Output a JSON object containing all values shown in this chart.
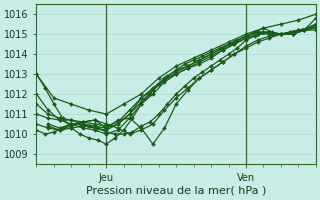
{
  "title": "",
  "xlabel": "Pression niveau de la mer( hPa )",
  "ylabel": "",
  "background_color": "#c8ece6",
  "plot_background": "#c8ece6",
  "grid_color_h": "#b0d8d0",
  "grid_color_v": "#b0d8d0",
  "line_color": "#1a5c1a",
  "ylim": [
    1008.5,
    1016.5
  ],
  "xlim": [
    0,
    96
  ],
  "xticks": [
    24,
    72
  ],
  "xtick_labels": [
    "Jeu",
    "Ven"
  ],
  "yticks": [
    1009,
    1010,
    1011,
    1012,
    1013,
    1014,
    1015,
    1016
  ],
  "series": [
    {
      "x": [
        0,
        3,
        6,
        9,
        12,
        15,
        18,
        21,
        24,
        27,
        30,
        33,
        36,
        39,
        42,
        45,
        48,
        51,
        54,
        57,
        60,
        63,
        66,
        69,
        72,
        75,
        78,
        81,
        84,
        87,
        90,
        93,
        96
      ],
      "y": [
        1013.0,
        1012.3,
        1011.5,
        1010.8,
        1010.3,
        1010.0,
        1009.8,
        1009.7,
        1009.5,
        1009.8,
        1010.2,
        1010.8,
        1011.5,
        1012.0,
        1012.5,
        1012.9,
        1013.2,
        1013.5,
        1013.7,
        1013.9,
        1014.1,
        1014.3,
        1014.5,
        1014.7,
        1014.9,
        1015.1,
        1015.3,
        1015.1,
        1015.0,
        1015.1,
        1015.2,
        1015.3,
        1015.5
      ]
    },
    {
      "x": [
        0,
        4,
        8,
        12,
        16,
        20,
        24,
        28,
        32,
        36,
        40,
        44,
        48,
        52,
        56,
        60,
        64,
        68,
        72,
        76,
        80,
        84,
        88,
        92,
        96
      ],
      "y": [
        1012.0,
        1011.2,
        1010.7,
        1010.5,
        1010.3,
        1010.2,
        1010.0,
        1010.2,
        1010.8,
        1011.5,
        1012.0,
        1012.6,
        1013.0,
        1013.3,
        1013.5,
        1013.8,
        1014.2,
        1014.5,
        1014.8,
        1015.0,
        1015.1,
        1015.0,
        1015.0,
        1015.2,
        1015.2
      ]
    },
    {
      "x": [
        0,
        4,
        8,
        12,
        16,
        20,
        24,
        28,
        32,
        36,
        40,
        44,
        48,
        52,
        56,
        60,
        64,
        68,
        72,
        76,
        80,
        84,
        88,
        92,
        96
      ],
      "y": [
        1011.5,
        1011.0,
        1010.8,
        1010.7,
        1010.5,
        1010.4,
        1010.3,
        1010.5,
        1011.0,
        1011.8,
        1012.2,
        1012.7,
        1013.0,
        1013.3,
        1013.6,
        1013.9,
        1014.2,
        1014.5,
        1014.8,
        1015.0,
        1015.0,
        1015.0,
        1015.0,
        1015.2,
        1015.3
      ]
    },
    {
      "x": [
        0,
        4,
        8,
        12,
        16,
        20,
        24,
        28,
        32,
        36,
        40,
        44,
        48,
        52,
        56,
        60,
        64,
        68,
        72,
        76,
        80,
        84,
        88,
        92,
        96
      ],
      "y": [
        1011.0,
        1010.8,
        1010.7,
        1010.7,
        1010.6,
        1010.5,
        1010.4,
        1010.6,
        1011.2,
        1011.8,
        1012.3,
        1012.8,
        1013.2,
        1013.4,
        1013.7,
        1014.0,
        1014.3,
        1014.6,
        1014.9,
        1015.1,
        1015.1,
        1015.0,
        1015.1,
        1015.2,
        1015.4
      ]
    },
    {
      "x": [
        0,
        4,
        8,
        12,
        16,
        20,
        24,
        28,
        32,
        36,
        40,
        44,
        48,
        52,
        56,
        60,
        64,
        68,
        72,
        76,
        80,
        84,
        88,
        92,
        96
      ],
      "y": [
        1010.5,
        1010.3,
        1010.2,
        1010.3,
        1010.4,
        1010.3,
        1010.2,
        1010.5,
        1011.0,
        1011.6,
        1012.2,
        1012.7,
        1013.1,
        1013.4,
        1013.7,
        1014.0,
        1014.3,
        1014.6,
        1014.9,
        1015.1,
        1015.1,
        1015.0,
        1015.1,
        1015.2,
        1015.4
      ]
    },
    {
      "x": [
        0,
        3,
        6,
        9,
        12,
        15,
        18,
        21,
        24,
        27,
        30,
        33,
        36,
        39,
        42,
        45,
        48,
        51,
        54,
        57,
        60,
        63,
        66,
        69,
        72,
        75,
        78,
        81,
        84,
        87,
        90,
        93,
        96
      ],
      "y": [
        1010.2,
        1010.0,
        1010.1,
        1010.3,
        1010.5,
        1010.5,
        1010.4,
        1010.3,
        1010.1,
        1010.0,
        1010.0,
        1010.1,
        1010.4,
        1010.6,
        1011.0,
        1011.5,
        1012.0,
        1012.4,
        1012.8,
        1013.1,
        1013.4,
        1013.7,
        1014.0,
        1014.3,
        1014.7,
        1014.9,
        1015.1,
        1015.0,
        1015.0,
        1015.1,
        1015.2,
        1015.3,
        1015.5
      ]
    },
    {
      "x": [
        4,
        8,
        12,
        16,
        20,
        24,
        28,
        32,
        36,
        40,
        44,
        48,
        52,
        56,
        60,
        64,
        68,
        72,
        76,
        80,
        84,
        88,
        92,
        96
      ],
      "y": [
        1010.5,
        1010.3,
        1010.5,
        1010.6,
        1010.7,
        1010.5,
        1010.3,
        1010.0,
        1010.2,
        1010.5,
        1011.2,
        1011.8,
        1012.3,
        1012.8,
        1013.2,
        1013.6,
        1014.0,
        1014.4,
        1014.7,
        1014.9,
        1015.0,
        1015.0,
        1015.2,
        1015.5
      ]
    },
    {
      "x": [
        4,
        8,
        12,
        16,
        20,
        24,
        28,
        32,
        36,
        40,
        44,
        48,
        52,
        56,
        60,
        64,
        68,
        72,
        76,
        80,
        84,
        88,
        92,
        96
      ],
      "y": [
        1010.4,
        1010.2,
        1010.4,
        1010.6,
        1010.7,
        1010.3,
        1010.7,
        1010.8,
        1010.3,
        1009.5,
        1010.3,
        1011.5,
        1012.2,
        1012.8,
        1013.2,
        1013.6,
        1014.0,
        1014.3,
        1014.6,
        1014.8,
        1015.0,
        1015.0,
        1015.2,
        1015.8
      ]
    },
    {
      "x": [
        0,
        6,
        12,
        18,
        24,
        30,
        36,
        42,
        48,
        54,
        60,
        66,
        72,
        78,
        84,
        90,
        96
      ],
      "y": [
        1013.0,
        1011.8,
        1011.5,
        1011.2,
        1011.0,
        1011.5,
        1012.0,
        1012.8,
        1013.4,
        1013.8,
        1014.2,
        1014.6,
        1015.0,
        1015.3,
        1015.5,
        1015.7,
        1016.0
      ]
    }
  ],
  "vlines": [
    24,
    72
  ],
  "vline_color": "#2a6a2a",
  "marker": "D",
  "markersize": 2.0,
  "linewidth": 0.9
}
